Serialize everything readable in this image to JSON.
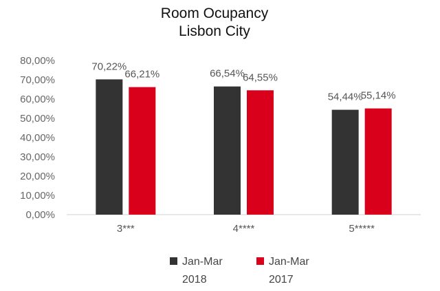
{
  "chart_data": {
    "type": "bar",
    "title": "Room Ocupancy",
    "subtitle": "Lisbon City",
    "categories": [
      "3***",
      "4****",
      "5*****"
    ],
    "series": [
      {
        "name": "Jan-Mar 2018",
        "legend_lines": [
          "Jan-Mar",
          "2018"
        ],
        "values": [
          70.22,
          66.54,
          54.44
        ],
        "labels": [
          "70,22%",
          "66,54%",
          "54,44%"
        ],
        "color": "#333333"
      },
      {
        "name": "Jan-Mar 2017",
        "legend_lines": [
          "Jan-Mar",
          "2017"
        ],
        "values": [
          66.21,
          64.55,
          55.14
        ],
        "labels": [
          "66,21%",
          "64,55%",
          "55,14%"
        ],
        "color": "#d9001b"
      }
    ],
    "y_ticks": [
      0,
      10,
      20,
      30,
      40,
      50,
      60,
      70,
      80
    ],
    "y_tick_labels": [
      "0,00%",
      "10,00%",
      "20,00%",
      "30,00%",
      "40,00%",
      "50,00%",
      "60,00%",
      "70,00%",
      "80,00%"
    ],
    "ylim": [
      0,
      80
    ],
    "xlabel": "",
    "ylabel": "",
    "grid": false,
    "legend_position": "bottom"
  }
}
